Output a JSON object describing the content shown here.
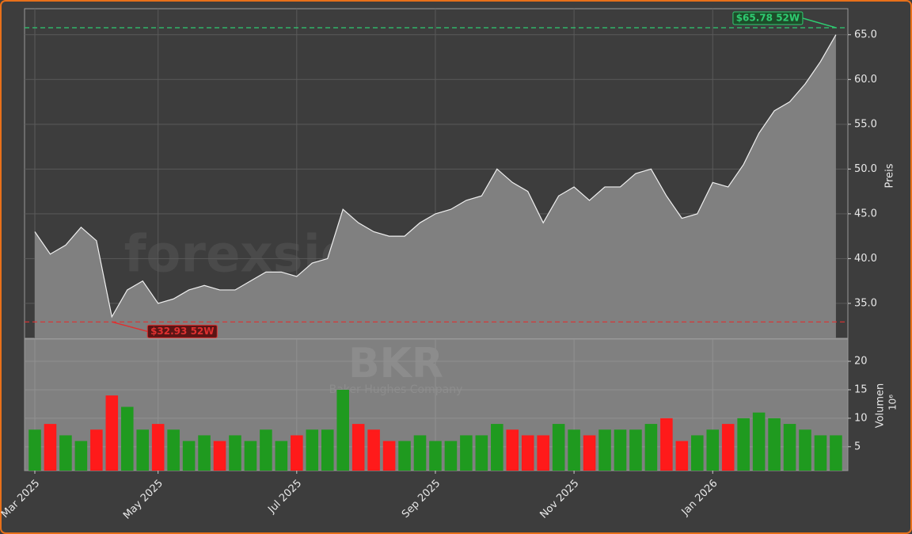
{
  "chart_data": [
    {
      "type": "area",
      "categories": [
        "Mar 2025",
        null,
        null,
        null,
        null,
        null,
        null,
        null,
        "May 2025",
        null,
        null,
        null,
        null,
        null,
        null,
        null,
        null,
        "Jul 2025",
        null,
        null,
        null,
        null,
        null,
        null,
        null,
        null,
        "Sep 2025",
        null,
        null,
        null,
        null,
        null,
        null,
        null,
        null,
        "Nov 2025",
        null,
        null,
        null,
        null,
        null,
        null,
        null,
        null,
        "Jan 2026",
        null,
        null,
        null,
        null,
        null,
        null,
        null,
        null
      ],
      "values": [
        43,
        40.5,
        41.5,
        43.5,
        42,
        33.5,
        36.5,
        37.5,
        35,
        35.5,
        36.5,
        37,
        36.5,
        36.5,
        37.5,
        38.5,
        38.5,
        38,
        39.5,
        40,
        45.5,
        44,
        43,
        42.5,
        42.5,
        44,
        45,
        45.5,
        46.5,
        47,
        50,
        48.5,
        47.5,
        44,
        47,
        48,
        46.5,
        48,
        48,
        49.5,
        50,
        47,
        44.5,
        45,
        48.5,
        48,
        50.5,
        54,
        56.5,
        57.5,
        59.5,
        62,
        65
      ],
      "color": "#808080",
      "ylim": [
        31.1,
        67.9
      ],
      "yticks": [
        {
          "value": 35,
          "label": "35.0"
        },
        {
          "value": 40,
          "label": "40.0"
        },
        {
          "value": 45,
          "label": "45.0"
        },
        {
          "value": 50,
          "label": "50.0"
        },
        {
          "value": 55,
          "label": "55.0"
        },
        {
          "value": 60,
          "label": "60.0"
        },
        {
          "value": 65,
          "label": "65.0"
        }
      ],
      "ylabel": "Preis",
      "grid": true,
      "watermark": "forexsignale.trade",
      "annotations": [
        {
          "text": "$65.78 52W",
          "value": 65.78,
          "color": "#2ecc71"
        },
        {
          "text": "$32.93 52W",
          "value": 32.93,
          "color": "#e03030"
        }
      ]
    },
    {
      "type": "bar",
      "values": [
        8,
        9,
        7,
        6,
        8,
        14,
        12,
        8,
        9,
        8,
        6,
        7,
        6,
        7,
        6,
        8,
        6,
        7,
        8,
        8,
        15,
        9,
        8,
        6,
        6,
        7,
        6,
        6,
        7,
        7,
        9,
        8,
        7,
        7,
        9,
        8,
        7,
        8,
        8,
        8,
        9,
        10,
        6,
        7,
        8,
        9,
        10,
        11,
        10,
        9,
        8,
        7,
        7
      ],
      "up_color": "#1f9a1f",
      "down_color": "#ff1a1a",
      "ylim": [
        0.8,
        23.9
      ],
      "yticks": [
        5,
        10,
        15,
        20
      ],
      "ylabel": "Volumen",
      "offset_label": "10⁶",
      "watermark": "BKR",
      "subtitle": "Baker Hughes Company"
    }
  ]
}
